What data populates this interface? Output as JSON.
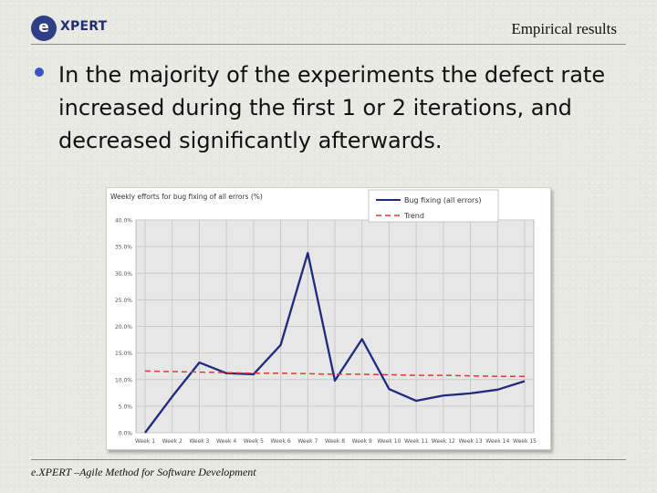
{
  "header": {
    "logo_letter": "e",
    "logo_word": "XPERT",
    "title": "Empirical results"
  },
  "bullet": {
    "text": "In the majority of the experiments the defect rate increased during the first 1 or 2 iterations, and decreased significantly afterwards."
  },
  "footer": {
    "text": "e.XPERT –Agile Method for Software Development"
  },
  "chart_data": {
    "type": "line",
    "title": "Weekly efforts for bug fixing of all errors (%)",
    "categories": [
      "Week 1",
      "Week 2",
      "Week 3",
      "Week 4",
      "Week 5",
      "Week 6",
      "Week 7",
      "Week 8",
      "Week 9",
      "Week 10",
      "Week 11",
      "Week 12",
      "Week 13",
      "Week 14",
      "Week 15"
    ],
    "yticks": [
      "0.0%",
      "5.0%",
      "10.0%",
      "15.0%",
      "20.0%",
      "25.0%",
      "30.0%",
      "35.0%",
      "40.0%"
    ],
    "ylim": [
      0,
      40
    ],
    "grid": true,
    "legend_position": "top-right",
    "series": [
      {
        "name": "Bug fixing (all errors)",
        "color": "#1f2a80",
        "style": "solid",
        "values": [
          0.0,
          6.8,
          13.2,
          11.2,
          11.0,
          16.5,
          33.8,
          9.8,
          17.6,
          8.2,
          6.0,
          7.0,
          7.4,
          8.1,
          9.7
        ]
      },
      {
        "name": "Trend",
        "color": "#e23a2a",
        "style": "dashed",
        "values": [
          11.6,
          11.5,
          11.4,
          11.3,
          11.2,
          11.2,
          11.1,
          11.0,
          11.0,
          10.9,
          10.8,
          10.8,
          10.7,
          10.6,
          10.6
        ]
      }
    ]
  }
}
